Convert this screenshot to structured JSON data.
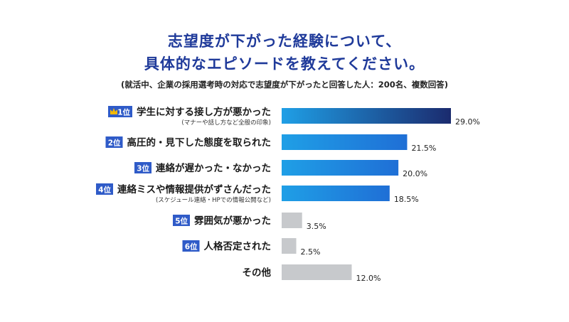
{
  "title_line1": "志望度が下がった経験について、",
  "title_line2": "具体的なエピソードを教えてください。",
  "subtitle": "(就活中、企業の採用選考時の対応で志望度が下がったと回答した人：200名、複数回答)",
  "colors": {
    "title": "#1f3a9a",
    "badge": "#2f5bc8",
    "crown": "#f2b807",
    "gray": "#c7c9cc",
    "gradient_start": "#1f9fe6",
    "gradient_end": "#1b2b6e"
  },
  "chart_data": {
    "type": "bar",
    "orientation": "horizontal",
    "unit": "%",
    "xlim": [
      0,
      30
    ],
    "grid": false,
    "title": "志望度が下がった経験について、具体的なエピソードを教えてください。",
    "items": [
      {
        "rank": "1位",
        "crown": true,
        "label": "学生に対する接し方が悪かった",
        "note": "(マナーや話し方など全般の印象)",
        "value": 29.0,
        "value_label": "29.0%",
        "style": "blue"
      },
      {
        "rank": "2位",
        "crown": false,
        "label": "高圧的・見下した態度を取られた",
        "note": "",
        "value": 21.5,
        "value_label": "21.5%",
        "style": "blue"
      },
      {
        "rank": "3位",
        "crown": false,
        "label": "連絡が遅かった・なかった",
        "note": "",
        "value": 20.0,
        "value_label": "20.0%",
        "style": "blue"
      },
      {
        "rank": "4位",
        "crown": false,
        "label": "連絡ミスや情報提供がずさんだった",
        "note": "(スケジュール連絡・HPでの情報公開など)",
        "value": 18.5,
        "value_label": "18.5%",
        "style": "blue"
      },
      {
        "rank": "5位",
        "crown": false,
        "label": "雰囲気が悪かった",
        "note": "",
        "value": 3.5,
        "value_label": "3.5%",
        "style": "gray"
      },
      {
        "rank": "6位",
        "crown": false,
        "label": "人格否定された",
        "note": "",
        "value": 2.5,
        "value_label": "2.5%",
        "style": "gray"
      },
      {
        "rank": "",
        "crown": false,
        "label": "その他",
        "note": "",
        "value": 12.0,
        "value_label": "12.0%",
        "style": "gray"
      }
    ]
  }
}
